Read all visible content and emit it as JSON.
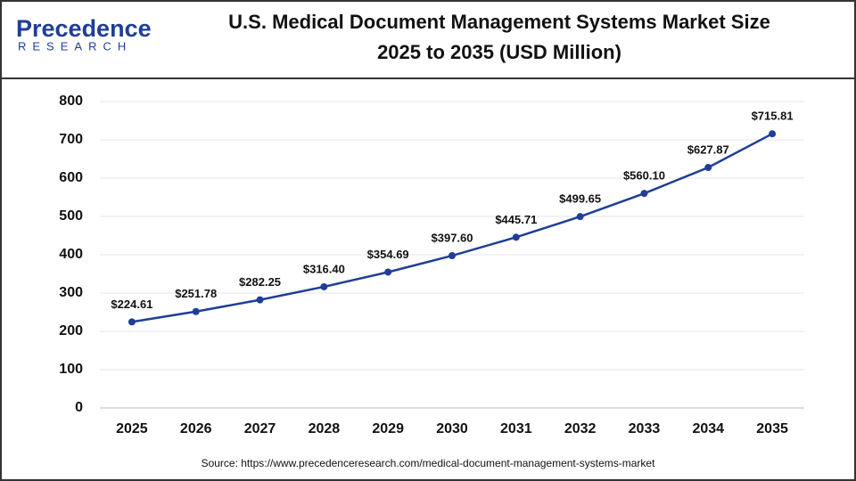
{
  "brand": {
    "name": "Precedence",
    "tagline": "RESEARCH"
  },
  "chart_data": {
    "type": "line",
    "title": [
      "U.S. Medical Document Management Systems Market Size",
      "2025 to 2035 (USD Million)"
    ],
    "categories": [
      "2025",
      "2026",
      "2027",
      "2028",
      "2029",
      "2030",
      "2031",
      "2032",
      "2033",
      "2034",
      "2035"
    ],
    "values": [
      224.61,
      251.78,
      282.25,
      316.4,
      354.69,
      397.6,
      445.71,
      499.65,
      560.1,
      627.87,
      715.81
    ],
    "value_labels": [
      "$224.61",
      "$251.78",
      "$282.25",
      "$316.40",
      "$354.69",
      "$397.60",
      "$445.71",
      "$499.65",
      "$560.10",
      "$627.87",
      "$715.81"
    ],
    "color": "#1f3e97",
    "ylim": [
      0,
      800
    ],
    "yticks": [
      0,
      100,
      200,
      300,
      400,
      500,
      600,
      700,
      800
    ],
    "grid": true,
    "source": "Source: https://www.precedenceresearch.com/medical-document-management-systems-market"
  }
}
